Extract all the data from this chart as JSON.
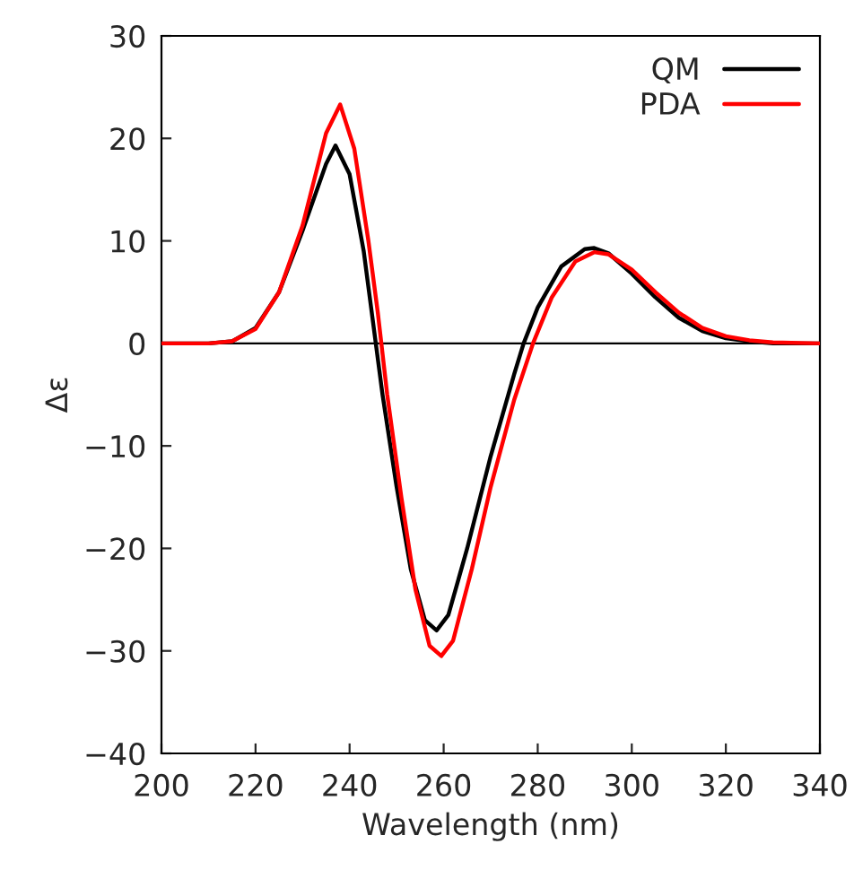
{
  "chart_data": {
    "type": "line",
    "xlabel": "Wavelength (nm)",
    "ylabel": "Δε",
    "xlim": [
      200,
      340
    ],
    "xticks": [
      200,
      220,
      240,
      260,
      280,
      300,
      320,
      340
    ],
    "ylim": [
      -40,
      30
    ],
    "yticks": [
      {
        "value": -40,
        "label": "−40"
      },
      {
        "value": -30,
        "label": "−30"
      },
      {
        "value": -20,
        "label": "−20"
      },
      {
        "value": -10,
        "label": "−10"
      },
      0,
      10,
      20,
      30
    ],
    "grid": false,
    "legend": "top right",
    "marker": "none",
    "line_style": "solid",
    "ref_lines": [
      {
        "axis": "y",
        "value": 0,
        "label": null,
        "color": "#000000"
      }
    ],
    "series": [
      {
        "name": "QM",
        "color": "#000000",
        "x": [
          200,
          210,
          215,
          220,
          225,
          230,
          235,
          237,
          240,
          243,
          245,
          247,
          250,
          253,
          256,
          258.5,
          261,
          265,
          270,
          275,
          277,
          280,
          285,
          290,
          292,
          295,
          300,
          305,
          310,
          315,
          320,
          325,
          330,
          340
        ],
        "values": [
          0,
          0,
          0.2,
          1.5,
          5,
          11,
          17.5,
          19.3,
          16.5,
          9,
          2,
          -5,
          -14,
          -22,
          -27,
          -28,
          -26.5,
          -20,
          -11,
          -3,
          0,
          3.5,
          7.5,
          9.2,
          9.3,
          8.8,
          6.8,
          4.5,
          2.5,
          1.2,
          0.5,
          0.2,
          0,
          0
        ]
      },
      {
        "name": "PDA",
        "color": "#ff0000",
        "x": [
          200,
          210,
          215,
          220,
          225,
          230,
          235,
          238,
          241,
          244,
          246,
          248,
          251,
          254,
          257,
          259.5,
          262,
          266,
          270,
          275,
          279,
          283,
          288,
          292,
          295,
          300,
          305,
          310,
          315,
          320,
          325,
          330,
          340
        ],
        "values": [
          0,
          0,
          0.2,
          1.4,
          5,
          11.5,
          20.5,
          23.3,
          19,
          10,
          3,
          -5,
          -15,
          -24,
          -29.5,
          -30.5,
          -29,
          -22,
          -14,
          -5.5,
          0,
          4.5,
          8,
          8.9,
          8.7,
          7.2,
          5,
          3,
          1.5,
          0.7,
          0.3,
          0.1,
          0
        ]
      }
    ]
  }
}
